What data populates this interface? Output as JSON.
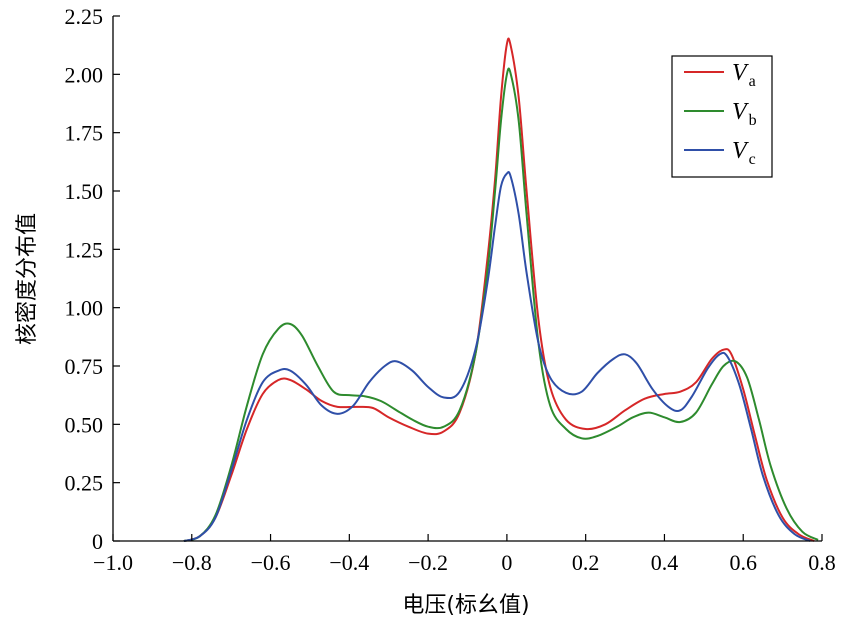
{
  "chart_data": {
    "type": "line",
    "title": "",
    "xlabel": "电压(标幺值)",
    "ylabel": "核密度分布值",
    "xlim": [
      -1.0,
      0.8
    ],
    "ylim": [
      0,
      2.25
    ],
    "xticks": [
      "−1.0",
      "−0.8",
      "−0.6",
      "−0.4",
      "−0.2",
      "0",
      "0.2",
      "0.4",
      "0.6",
      "0.8"
    ],
    "yticks": [
      "0",
      "0.25",
      "0.50",
      "0.75",
      "1.00",
      "1.25",
      "1.50",
      "1.75",
      "2.00",
      "2.25"
    ],
    "grid": false,
    "legend_position": "top-right",
    "series": [
      {
        "name": "V",
        "subscript": "a",
        "color": "#d62728",
        "points": [
          [
            -0.82,
            0
          ],
          [
            -0.78,
            0.02
          ],
          [
            -0.74,
            0.1
          ],
          [
            -0.7,
            0.28
          ],
          [
            -0.66,
            0.48
          ],
          [
            -0.62,
            0.63
          ],
          [
            -0.58,
            0.69
          ],
          [
            -0.55,
            0.69
          ],
          [
            -0.51,
            0.65
          ],
          [
            -0.47,
            0.6
          ],
          [
            -0.43,
            0.575
          ],
          [
            -0.38,
            0.575
          ],
          [
            -0.34,
            0.57
          ],
          [
            -0.3,
            0.53
          ],
          [
            -0.25,
            0.49
          ],
          [
            -0.2,
            0.46
          ],
          [
            -0.16,
            0.47
          ],
          [
            -0.12,
            0.55
          ],
          [
            -0.08,
            0.8
          ],
          [
            -0.05,
            1.2
          ],
          [
            -0.03,
            1.55
          ],
          [
            -0.015,
            1.9
          ],
          [
            0,
            2.13
          ],
          [
            0.01,
            2.12
          ],
          [
            0.03,
            1.9
          ],
          [
            0.05,
            1.5
          ],
          [
            0.08,
            0.95
          ],
          [
            0.11,
            0.66
          ],
          [
            0.15,
            0.52
          ],
          [
            0.2,
            0.48
          ],
          [
            0.25,
            0.5
          ],
          [
            0.3,
            0.56
          ],
          [
            0.35,
            0.61
          ],
          [
            0.4,
            0.63
          ],
          [
            0.44,
            0.64
          ],
          [
            0.48,
            0.68
          ],
          [
            0.52,
            0.78
          ],
          [
            0.55,
            0.82
          ],
          [
            0.57,
            0.8
          ],
          [
            0.6,
            0.65
          ],
          [
            0.63,
            0.45
          ],
          [
            0.66,
            0.26
          ],
          [
            0.7,
            0.1
          ],
          [
            0.74,
            0.03
          ],
          [
            0.78,
            0
          ]
        ]
      },
      {
        "name": "V",
        "subscript": "b",
        "color": "#2e8b2e",
        "points": [
          [
            -0.82,
            0
          ],
          [
            -0.78,
            0.02
          ],
          [
            -0.74,
            0.11
          ],
          [
            -0.7,
            0.32
          ],
          [
            -0.66,
            0.58
          ],
          [
            -0.62,
            0.8
          ],
          [
            -0.58,
            0.91
          ],
          [
            -0.55,
            0.93
          ],
          [
            -0.52,
            0.88
          ],
          [
            -0.48,
            0.75
          ],
          [
            -0.44,
            0.64
          ],
          [
            -0.4,
            0.625
          ],
          [
            -0.36,
            0.62
          ],
          [
            -0.32,
            0.6
          ],
          [
            -0.28,
            0.56
          ],
          [
            -0.24,
            0.52
          ],
          [
            -0.2,
            0.49
          ],
          [
            -0.16,
            0.49
          ],
          [
            -0.12,
            0.56
          ],
          [
            -0.08,
            0.8
          ],
          [
            -0.05,
            1.15
          ],
          [
            -0.03,
            1.5
          ],
          [
            -0.015,
            1.8
          ],
          [
            0,
            2.0
          ],
          [
            0.01,
            2.0
          ],
          [
            0.03,
            1.8
          ],
          [
            0.05,
            1.4
          ],
          [
            0.08,
            0.85
          ],
          [
            0.11,
            0.58
          ],
          [
            0.15,
            0.48
          ],
          [
            0.19,
            0.44
          ],
          [
            0.23,
            0.45
          ],
          [
            0.28,
            0.49
          ],
          [
            0.32,
            0.53
          ],
          [
            0.36,
            0.55
          ],
          [
            0.4,
            0.53
          ],
          [
            0.44,
            0.51
          ],
          [
            0.48,
            0.55
          ],
          [
            0.52,
            0.67
          ],
          [
            0.55,
            0.75
          ],
          [
            0.58,
            0.77
          ],
          [
            0.61,
            0.7
          ],
          [
            0.64,
            0.52
          ],
          [
            0.67,
            0.32
          ],
          [
            0.71,
            0.14
          ],
          [
            0.75,
            0.04
          ],
          [
            0.79,
            0.005
          ]
        ]
      },
      {
        "name": "V",
        "subscript": "c",
        "color": "#2f4fa8",
        "points": [
          [
            -0.82,
            0
          ],
          [
            -0.78,
            0.02
          ],
          [
            -0.74,
            0.1
          ],
          [
            -0.7,
            0.3
          ],
          [
            -0.66,
            0.52
          ],
          [
            -0.62,
            0.68
          ],
          [
            -0.58,
            0.73
          ],
          [
            -0.55,
            0.73
          ],
          [
            -0.51,
            0.67
          ],
          [
            -0.47,
            0.58
          ],
          [
            -0.43,
            0.545
          ],
          [
            -0.39,
            0.58
          ],
          [
            -0.35,
            0.68
          ],
          [
            -0.31,
            0.75
          ],
          [
            -0.28,
            0.77
          ],
          [
            -0.24,
            0.73
          ],
          [
            -0.2,
            0.66
          ],
          [
            -0.16,
            0.615
          ],
          [
            -0.12,
            0.64
          ],
          [
            -0.08,
            0.82
          ],
          [
            -0.05,
            1.1
          ],
          [
            -0.03,
            1.35
          ],
          [
            -0.015,
            1.52
          ],
          [
            0,
            1.575
          ],
          [
            0.01,
            1.56
          ],
          [
            0.03,
            1.4
          ],
          [
            0.05,
            1.15
          ],
          [
            0.08,
            0.85
          ],
          [
            0.11,
            0.7
          ],
          [
            0.15,
            0.635
          ],
          [
            0.19,
            0.64
          ],
          [
            0.23,
            0.72
          ],
          [
            0.27,
            0.78
          ],
          [
            0.3,
            0.8
          ],
          [
            0.33,
            0.76
          ],
          [
            0.37,
            0.65
          ],
          [
            0.41,
            0.575
          ],
          [
            0.44,
            0.56
          ],
          [
            0.47,
            0.62
          ],
          [
            0.51,
            0.74
          ],
          [
            0.54,
            0.8
          ],
          [
            0.56,
            0.79
          ],
          [
            0.59,
            0.67
          ],
          [
            0.62,
            0.48
          ],
          [
            0.65,
            0.28
          ],
          [
            0.69,
            0.11
          ],
          [
            0.73,
            0.03
          ],
          [
            0.77,
            0
          ]
        ]
      }
    ]
  }
}
